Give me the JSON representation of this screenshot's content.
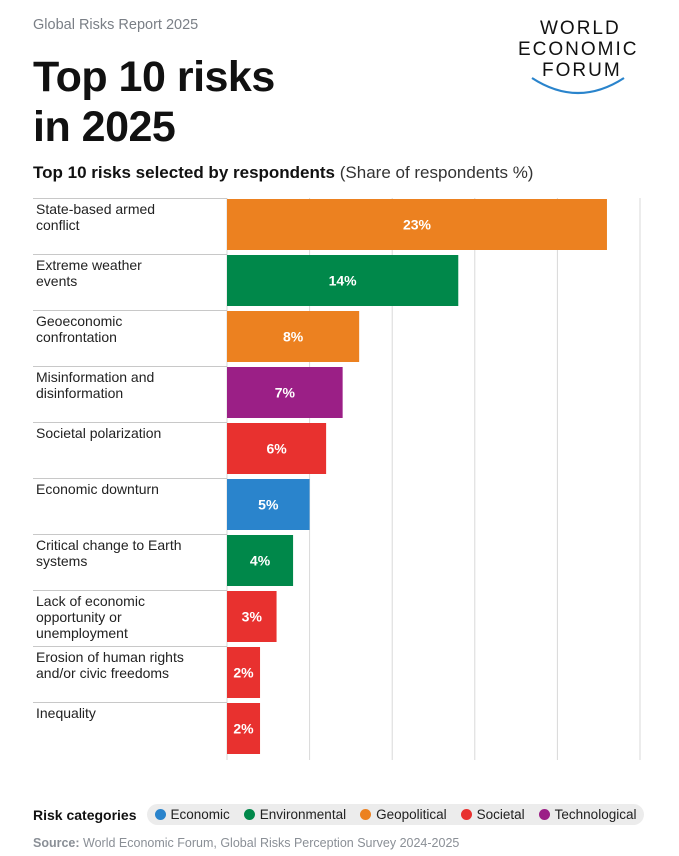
{
  "header": {
    "report_label": "Global Risks Report 2025",
    "title_line1": "Top 10 risks",
    "title_line2": "in 2025",
    "logo_lines": [
      "WORLD",
      "ECONOMIC",
      "FORUM"
    ]
  },
  "subtitle": {
    "bold": "Top 10 risks selected by respondents",
    "note": "(Share of respondents %)"
  },
  "chart_data": {
    "type": "bar",
    "orientation": "horizontal",
    "title": "Top 10 risks selected by respondents",
    "unit_note": "(Share of respondents %)",
    "categories": [
      [
        "State-based armed",
        "conflict"
      ],
      [
        "Extreme weather",
        "events"
      ],
      [
        "Geoeconomic",
        "confrontation"
      ],
      [
        "Misinformation and",
        "disinformation"
      ],
      [
        "Societal polarization"
      ],
      [
        "Economic downturn"
      ],
      [
        "Critical change to Earth",
        "systems"
      ],
      [
        "Lack of economic",
        "opportunity or",
        "unemployment"
      ],
      [
        "Erosion of human rights",
        "and/or civic freedoms"
      ],
      [
        "Inequality"
      ]
    ],
    "values": [
      23,
      14,
      8,
      7,
      6,
      5,
      4,
      3,
      2,
      2
    ],
    "value_labels": [
      "23%",
      "14%",
      "8%",
      "7%",
      "6%",
      "5%",
      "4%",
      "3%",
      "2%",
      "2%"
    ],
    "category_types": [
      "Geopolitical",
      "Environmental",
      "Geopolitical",
      "Technological",
      "Societal",
      "Economic",
      "Environmental",
      "Societal",
      "Societal",
      "Societal"
    ],
    "xlim": [
      0,
      25
    ],
    "grid": true
  },
  "legend": {
    "title": "Risk categories",
    "items": [
      {
        "label": "Economic",
        "color": "#2a84cc"
      },
      {
        "label": "Environmental",
        "color": "#00884a"
      },
      {
        "label": "Geopolitical",
        "color": "#ec8120"
      },
      {
        "label": "Societal",
        "color": "#e8312f"
      },
      {
        "label": "Technological",
        "color": "#9b1f86"
      }
    ]
  },
  "source": {
    "label": "Source:",
    "text": "World Economic Forum, Global Risks Perception Survey 2024-2025"
  }
}
